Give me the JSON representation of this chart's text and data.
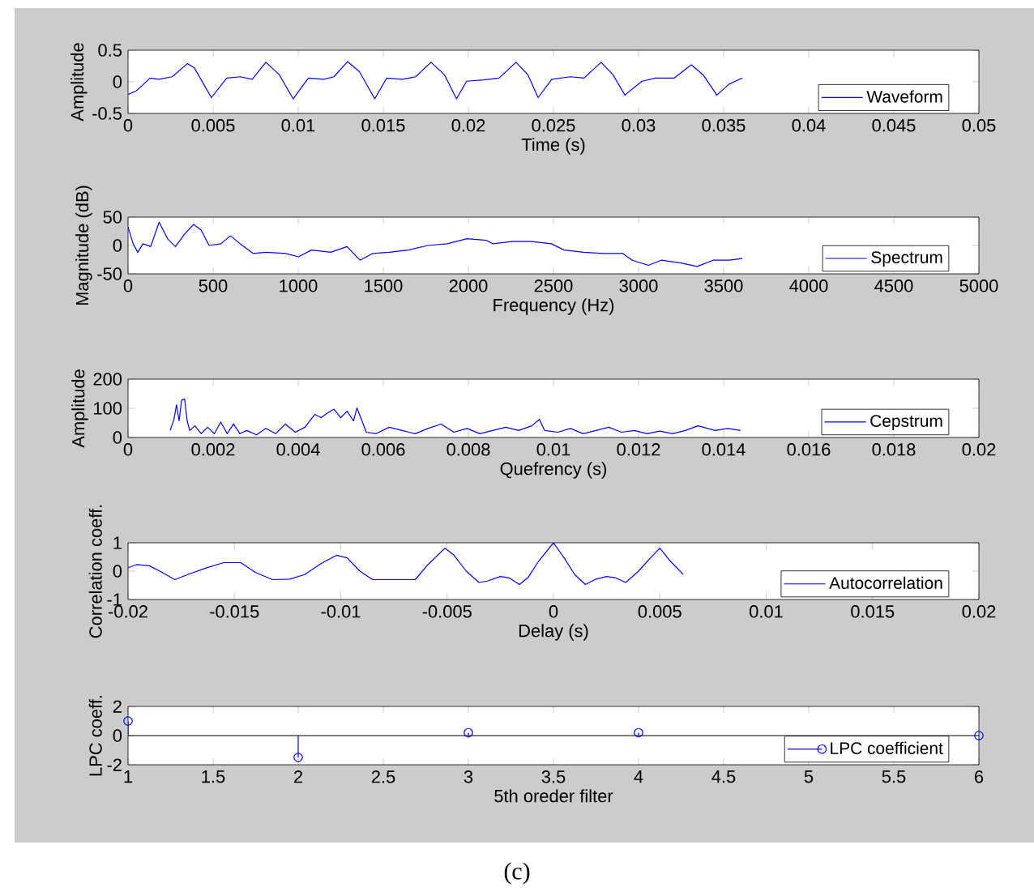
{
  "chart_data": [
    {
      "type": "line",
      "xlabel": "Time (s)",
      "ylabel": "Amplitude",
      "xlim": [
        0,
        0.05
      ],
      "ylim": [
        -0.5,
        0.5
      ],
      "xticks": [
        0,
        0.005,
        0.01,
        0.015,
        0.02,
        0.025,
        0.03,
        0.035,
        0.04,
        0.045,
        0.05
      ],
      "yticks": [
        -0.5,
        0,
        0.5
      ],
      "legend": "bottom right",
      "x": [
        0,
        0.0005,
        0.0013,
        0.0018,
        0.0026,
        0.0035,
        0.0039,
        0.0049,
        0.0058,
        0.0066,
        0.0073,
        0.0081,
        0.0089,
        0.0097,
        0.0106,
        0.0115,
        0.0121,
        0.0129,
        0.0136,
        0.0145,
        0.0152,
        0.0161,
        0.0169,
        0.0178,
        0.0186,
        0.0193,
        0.0199,
        0.0209,
        0.0218,
        0.0228,
        0.0235,
        0.0241,
        0.0249,
        0.026,
        0.0268,
        0.0278,
        0.0285,
        0.0292,
        0.0302,
        0.031,
        0.0321,
        0.0331,
        0.0338,
        0.0346,
        0.0353,
        0.0361
      ],
      "series": [
        {
          "name": "Waveform",
          "color": "#0000ff",
          "values": [
            -0.2,
            -0.14,
            0.06,
            0.04,
            0.08,
            0.29,
            0.22,
            -0.25,
            0.06,
            0.08,
            0.04,
            0.31,
            0.11,
            -0.27,
            0.06,
            0.04,
            0.08,
            0.32,
            0.16,
            -0.27,
            0.06,
            0.04,
            0.08,
            0.31,
            0.11,
            -0.27,
            0.01,
            0.03,
            0.06,
            0.31,
            0.11,
            -0.25,
            0.04,
            0.08,
            0.06,
            0.31,
            0.11,
            -0.21,
            0.01,
            0.06,
            0.06,
            0.27,
            0.11,
            -0.21,
            -0.04,
            0.06
          ]
        }
      ]
    },
    {
      "type": "line",
      "xlabel": "Frequency (Hz)",
      "ylabel": "Magnitude (dB)",
      "xlim": [
        0,
        5000
      ],
      "ylim": [
        -50,
        50
      ],
      "xticks": [
        0,
        500,
        1000,
        1500,
        2000,
        2500,
        3000,
        3500,
        4000,
        4500,
        5000
      ],
      "yticks": [
        -50,
        0,
        50
      ],
      "legend": "bottom right",
      "x": [
        0,
        30,
        57,
        88,
        133,
        183,
        232,
        278,
        335,
        385,
        430,
        476,
        545,
        602,
        659,
        735,
        811,
        925,
        1002,
        1078,
        1192,
        1287,
        1363,
        1439,
        1535,
        1649,
        1763,
        1877,
        1992,
        2106,
        2144,
        2258,
        2372,
        2487,
        2563,
        2677,
        2791,
        2906,
        2963,
        3058,
        3134,
        3249,
        3344,
        3439,
        3534,
        3610
      ],
      "series": [
        {
          "name": "Spectrum",
          "color": "#0000ff",
          "values": [
            33,
            3,
            -12,
            3,
            -2,
            41,
            12,
            -2,
            21,
            37,
            27,
            0,
            3,
            17,
            3,
            -14,
            -12,
            -14,
            -20,
            -8,
            -12,
            -2,
            -26,
            -14,
            -12,
            -8,
            0,
            3,
            12,
            9,
            3,
            7,
            7,
            3,
            -8,
            -12,
            -14,
            -14,
            -26,
            -35,
            -26,
            -31,
            -37,
            -26,
            -26,
            -23
          ]
        }
      ]
    },
    {
      "type": "line",
      "xlabel": "Quefrency (s)",
      "ylabel": "Amplitude",
      "xlim": [
        0,
        0.02
      ],
      "ylim": [
        0,
        200
      ],
      "xticks": [
        0,
        0.002,
        0.004,
        0.006,
        0.008,
        0.01,
        0.012,
        0.014,
        0.016,
        0.018,
        0.02
      ],
      "yticks": [
        0,
        100,
        200
      ],
      "legend": "bottom right",
      "x": [
        0.00099,
        0.00108,
        0.00114,
        0.0012,
        0.00126,
        0.00133,
        0.00139,
        0.00145,
        0.00157,
        0.00172,
        0.00187,
        0.00203,
        0.00218,
        0.00233,
        0.00248,
        0.00263,
        0.00279,
        0.00302,
        0.00324,
        0.00347,
        0.0037,
        0.00393,
        0.00416,
        0.00439,
        0.00454,
        0.00469,
        0.00484,
        0.005,
        0.00515,
        0.0053,
        0.00538,
        0.0055,
        0.0056,
        0.00583,
        0.00614,
        0.00644,
        0.00675,
        0.00705,
        0.00736,
        0.00766,
        0.00797,
        0.00827,
        0.00857,
        0.00888,
        0.00918,
        0.00949,
        0.00967,
        0.00979,
        0.0101,
        0.0104,
        0.0107,
        0.011,
        0.0113,
        0.0116,
        0.0119,
        0.0122,
        0.0125,
        0.0128,
        0.0131,
        0.0134,
        0.0138,
        0.0141,
        0.0144
      ],
      "series": [
        {
          "name": "Cepstrum",
          "color": "#0000ff",
          "values": [
            24,
            62,
            112,
            57,
            128,
            132,
            57,
            24,
            40,
            13,
            35,
            13,
            53,
            13,
            46,
            13,
            24,
            9,
            31,
            13,
            46,
            18,
            35,
            79,
            68,
            84,
            97,
            68,
            90,
            57,
            101,
            57,
            18,
            13,
            35,
            24,
            13,
            31,
            46,
            18,
            31,
            13,
            24,
            35,
            24,
            40,
            62,
            24,
            18,
            31,
            13,
            24,
            35,
            18,
            24,
            13,
            22,
            13,
            24,
            40,
            24,
            31,
            24
          ]
        }
      ]
    },
    {
      "type": "line",
      "xlabel": "Delay (s)",
      "ylabel": "Correlation coeff.",
      "xlim": [
        -0.02,
        0.02
      ],
      "ylim": [
        -1,
        1
      ],
      "xticks": [
        -0.02,
        -0.015,
        -0.01,
        -0.005,
        0,
        0.005,
        0.01,
        0.015,
        0.02
      ],
      "yticks": [
        -1,
        0,
        1
      ],
      "legend": "bottom right",
      "x": [
        -0.02,
        -0.0196,
        -0.019,
        -0.0185,
        -0.0178,
        -0.0172,
        -0.0163,
        -0.0155,
        -0.0147,
        -0.014,
        -0.0132,
        -0.0124,
        -0.0117,
        -0.0109,
        -0.0102,
        -0.0097,
        -0.0091,
        -0.0085,
        -0.0077,
        -0.0071,
        -0.0065,
        -0.0059,
        -0.0051,
        -0.0047,
        -0.0041,
        -0.0035,
        -0.0031,
        -0.0025,
        -0.0021,
        -0.0016,
        -0.0012,
        -0.0007,
        0,
        0.0005,
        0.001,
        0.0015,
        0.002,
        0.0025,
        0.0029,
        0.0034,
        0.004,
        0.0045,
        0.005,
        0.0055,
        0.0061
      ],
      "series": [
        {
          "name": "Autocorrelation",
          "color": "#0000ff",
          "values": [
            0.12,
            0.23,
            0.19,
            0,
            -0.3,
            -0.12,
            0.12,
            0.3,
            0.3,
            -0.05,
            -0.3,
            -0.28,
            -0.12,
            0.28,
            0.56,
            0.47,
            0,
            -0.3,
            -0.3,
            -0.3,
            -0.3,
            0.23,
            0.81,
            0.58,
            0,
            -0.4,
            -0.35,
            -0.19,
            -0.23,
            -0.47,
            -0.23,
            0.35,
            1,
            0.47,
            -0.12,
            -0.47,
            -0.28,
            -0.19,
            -0.23,
            -0.4,
            0,
            0.42,
            0.81,
            0.35,
            -0.12
          ]
        }
      ]
    },
    {
      "type": "lollipop",
      "xlabel": "5th oreder filter",
      "ylabel": "LPC coeff.",
      "xlim": [
        1,
        6
      ],
      "ylim": [
        -2,
        2
      ],
      "xticks": [
        1,
        1.5,
        2,
        2.5,
        3,
        3.5,
        4,
        4.5,
        5,
        5.5,
        6
      ],
      "yticks": [
        -2,
        0,
        2
      ],
      "legend": "bottom right",
      "marker": "circle",
      "x": [
        1,
        2,
        3,
        4,
        5,
        6
      ],
      "ref_lines": [
        {
          "axis": "y",
          "value": 0,
          "color": "#000000"
        }
      ],
      "annotations": [
        "(c)"
      ],
      "series": [
        {
          "name": "LPC coefficient",
          "color": "#0000ff",
          "values": [
            1,
            -1.5,
            0.2,
            0.2,
            null,
            0
          ]
        }
      ]
    }
  ]
}
